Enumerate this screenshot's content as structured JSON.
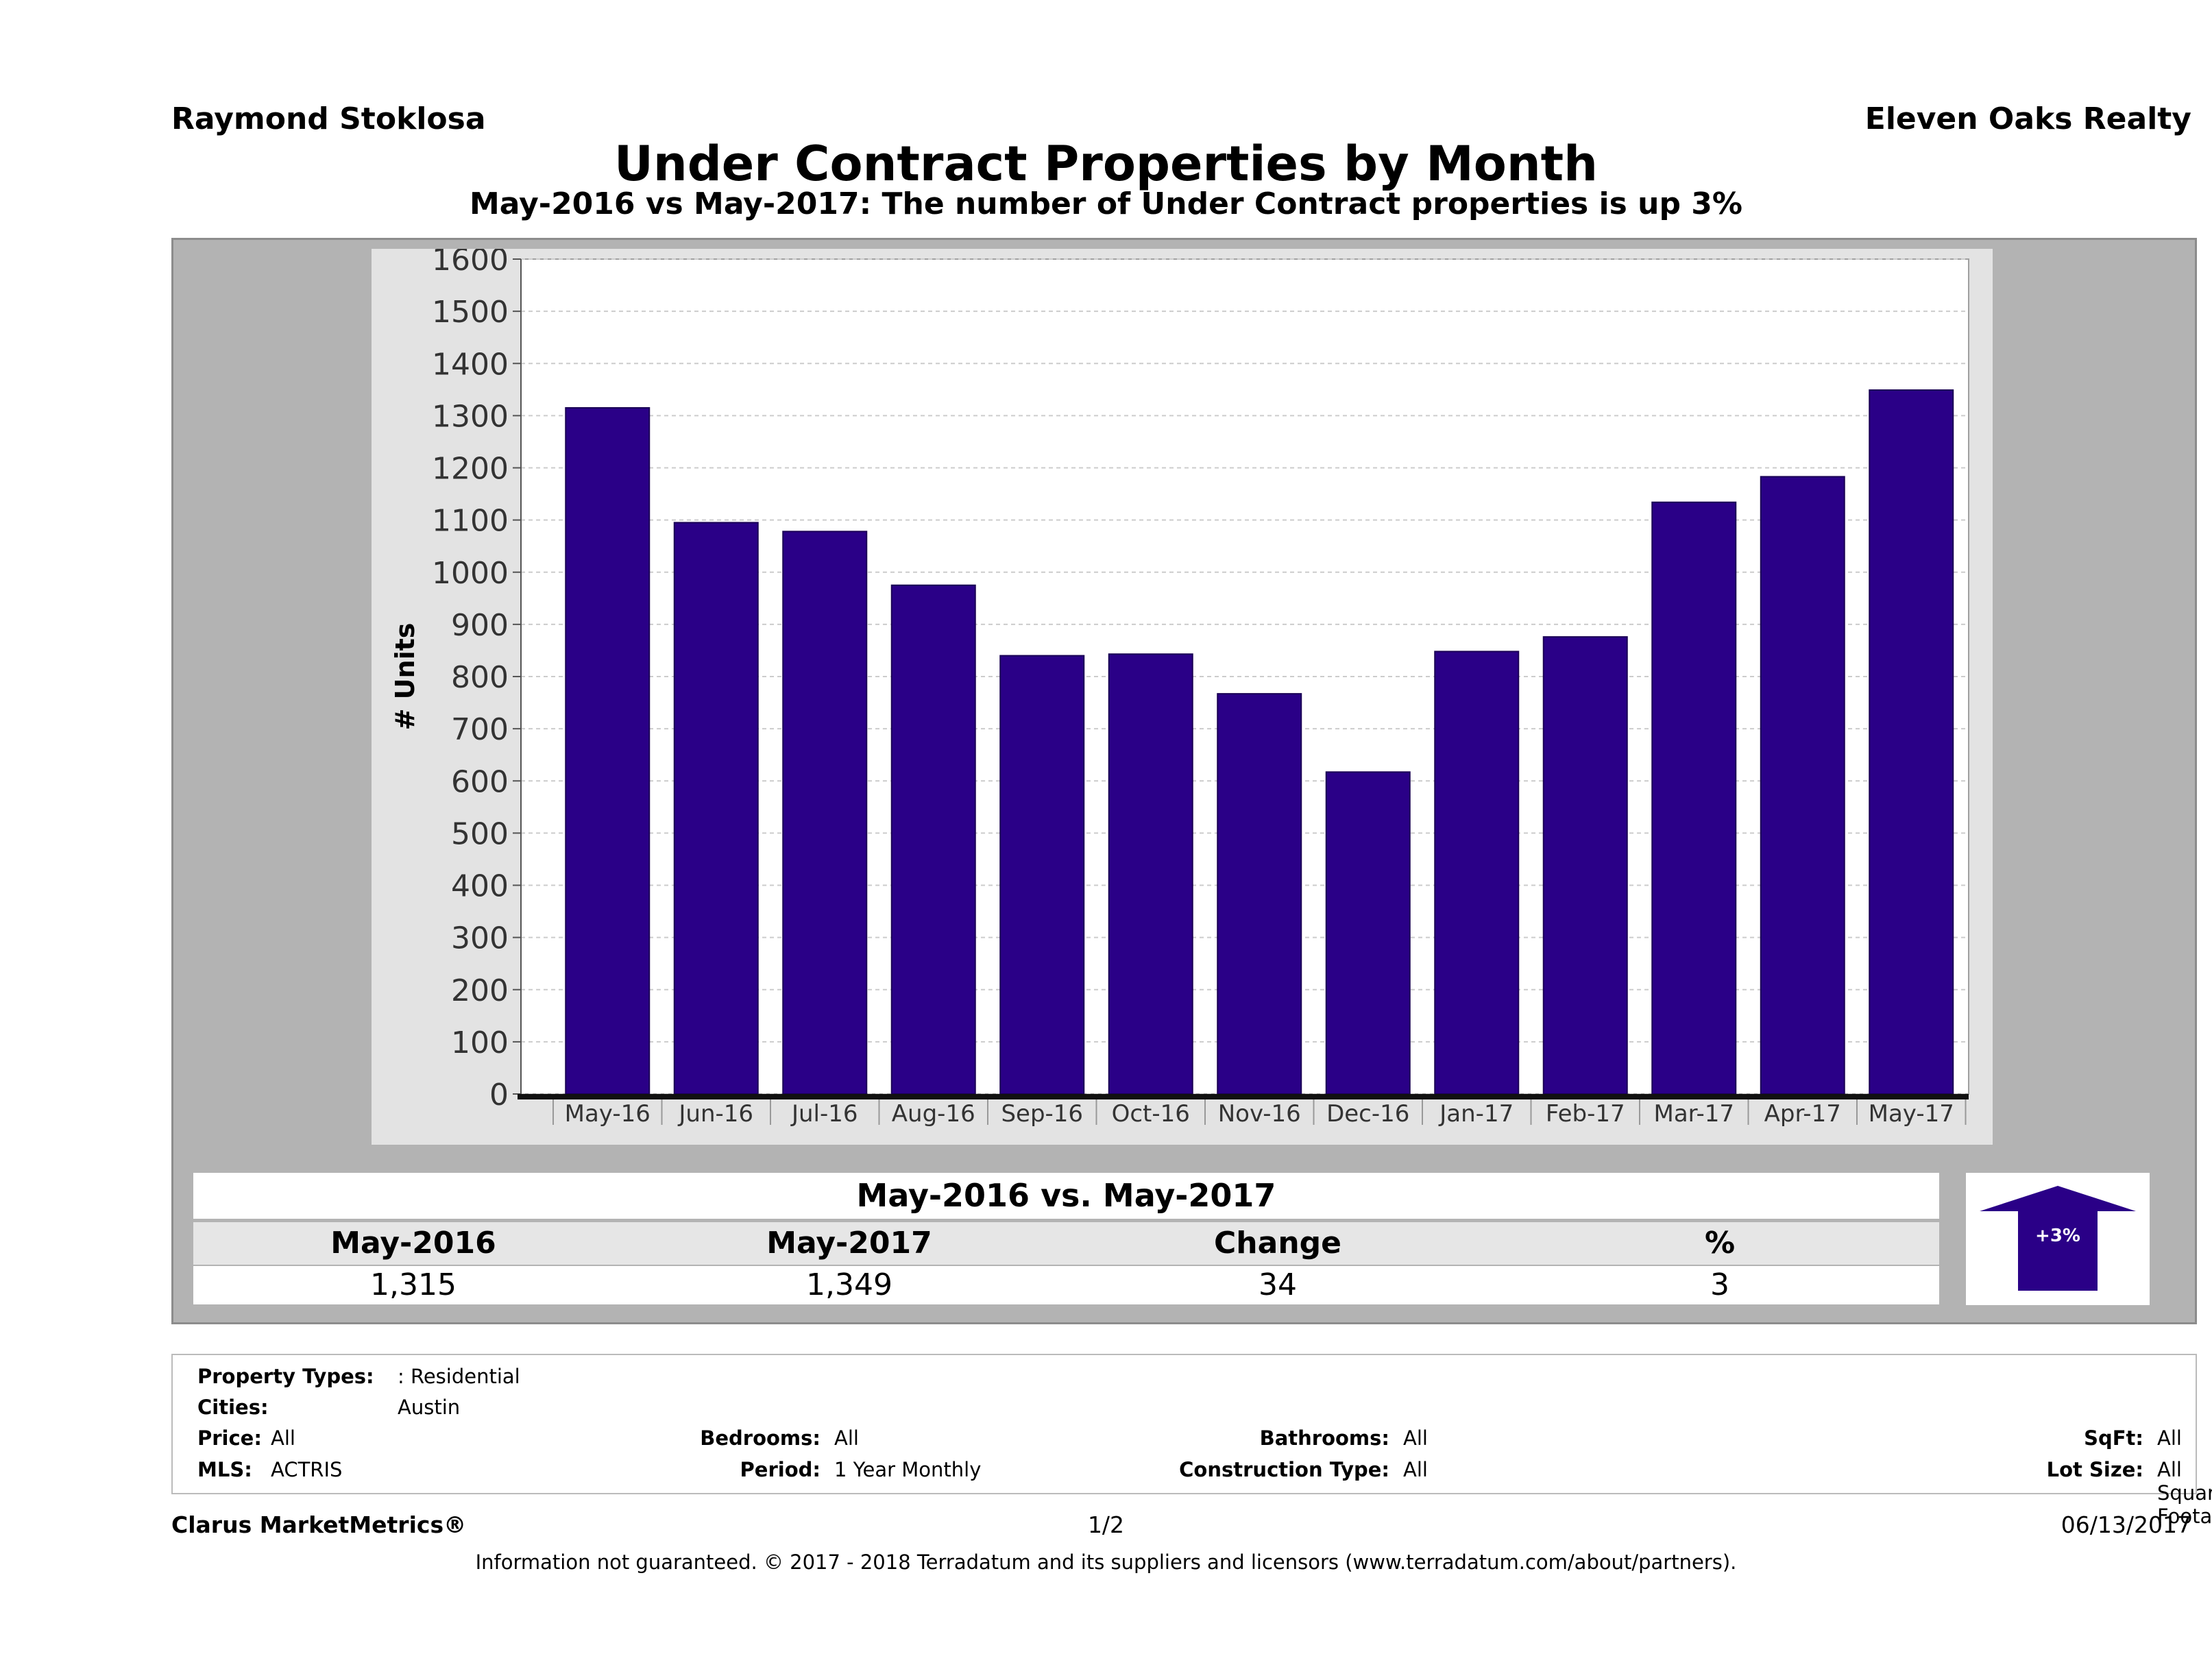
{
  "header": {
    "agent": "Raymond Stoklosa",
    "company": "Eleven Oaks Realty",
    "title": "Under Contract Properties by Month",
    "subtitle": "May-2016 vs May-2017: The number of Under Contract  properties is up 3%"
  },
  "chart_data": {
    "type": "bar",
    "categories": [
      "May-16",
      "Jun-16",
      "Jul-16",
      "Aug-16",
      "Sep-16",
      "Oct-16",
      "Nov-16",
      "Dec-16",
      "Jan-17",
      "Feb-17",
      "Mar-17",
      "Apr-17",
      "May-17"
    ],
    "values": [
      1315,
      1095,
      1078,
      975,
      840,
      843,
      767,
      617,
      848,
      876,
      1134,
      1183,
      1349
    ],
    "ylabel": "# Units",
    "ylim": [
      0,
      1600
    ],
    "yticks": [
      0,
      100,
      200,
      300,
      400,
      500,
      600,
      700,
      800,
      900,
      1000,
      1100,
      1200,
      1300,
      1400,
      1500,
      1600
    ],
    "grid": true,
    "bar_color": "#2a0087"
  },
  "comparison": {
    "title": "May-2016 vs. May-2017",
    "headers": [
      "May-2016",
      "May-2017",
      "Change",
      "%"
    ],
    "values": [
      "1,315",
      "1,349",
      "34",
      "3"
    ],
    "badge": "+3%",
    "badge_color": "#2a0087"
  },
  "filters": {
    "property_types_label": "Property Types:",
    "property_types_value": ": Residential",
    "cities_label": "Cities:",
    "cities_value": "Austin",
    "price_label": "Price:",
    "price_value": "All",
    "mls_label": "MLS:",
    "mls_value": "ACTRIS",
    "bedrooms_label": "Bedrooms:",
    "bedrooms_value": "All",
    "period_label": "Period:",
    "period_value": "1 Year Monthly",
    "bathrooms_label": "Bathrooms:",
    "bathrooms_value": "All",
    "construction_label": "Construction Type:",
    "construction_value": "All",
    "sqft_label": "SqFt:",
    "sqft_value": "All",
    "lot_label": "Lot Size:",
    "lot_value": "All Square Footage"
  },
  "footer": {
    "brand": "Clarus MarketMetrics®",
    "page": "1/2",
    "date": "06/13/2017",
    "disclaimer": "Information not guaranteed. © 2017 - 2018 Terradatum and its suppliers and licensors (www.terradatum.com/about/partners)."
  }
}
